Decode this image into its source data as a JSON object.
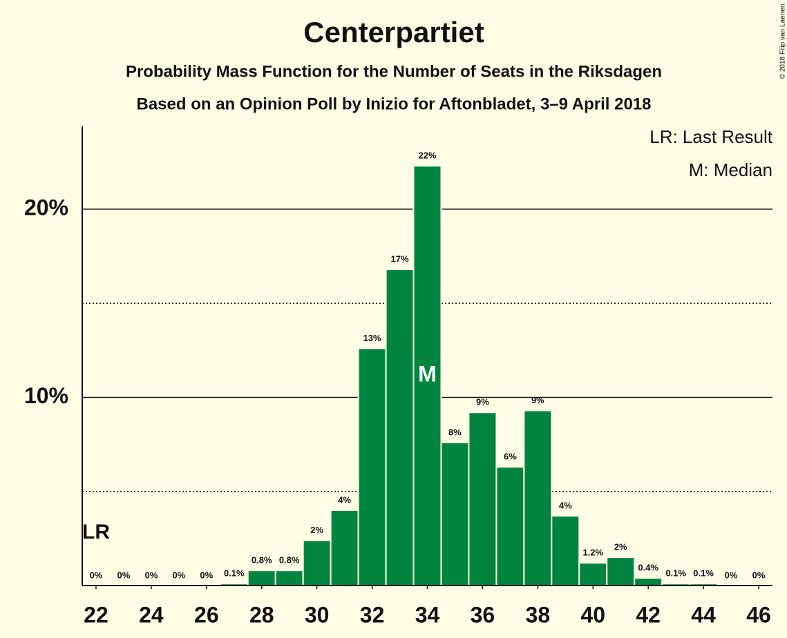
{
  "chart_data": {
    "type": "bar",
    "title": "Centerpartiet",
    "subtitle": [
      "Probability Mass Function for the Number of Seats in the Riksdagen",
      "Based on an Opinion Poll by Inizio for Aftonbladet, 3–9 April 2018"
    ],
    "copyright": "© 2018 Filip van Laenen",
    "x": [
      22,
      23,
      24,
      25,
      26,
      27,
      28,
      29,
      30,
      31,
      32,
      33,
      34,
      35,
      36,
      37,
      38,
      39,
      40,
      41,
      42,
      43,
      44,
      45,
      46
    ],
    "values": [
      0,
      0,
      0,
      0,
      0,
      0.1,
      0.8,
      0.8,
      2.4,
      4.0,
      12.6,
      16.8,
      22.3,
      7.6,
      9.2,
      6.3,
      9.3,
      3.7,
      1.2,
      1.5,
      0.4,
      0.1,
      0.1,
      0,
      0
    ],
    "value_labels": [
      "0%",
      "0%",
      "0%",
      "0%",
      "0%",
      "0.1%",
      "0.8%",
      "0.8%",
      "2%",
      "4%",
      "13%",
      "17%",
      "22%",
      "8%",
      "9%",
      "6%",
      "9%",
      "4%",
      "1.2%",
      "2%",
      "0.4%",
      "0.1%",
      "0.1%",
      "0%",
      "0%"
    ],
    "color": "#00843e",
    "xlim": [
      21.5,
      46.5
    ],
    "xticks": [
      22,
      24,
      26,
      28,
      30,
      32,
      34,
      36,
      38,
      40,
      42,
      44,
      46
    ],
    "ylim": [
      0,
      24.4
    ],
    "yticks": [
      {
        "value": 10,
        "label": "10%"
      },
      {
        "value": 20,
        "label": "20%"
      }
    ],
    "minor_yticks": [
      5,
      15
    ],
    "grid": true,
    "annotations": {
      "last_result": {
        "x": 22,
        "label": "LR"
      },
      "median": {
        "x": 34,
        "label": "M"
      }
    },
    "legend": [
      "LR: Last Result",
      "M: Median"
    ]
  }
}
